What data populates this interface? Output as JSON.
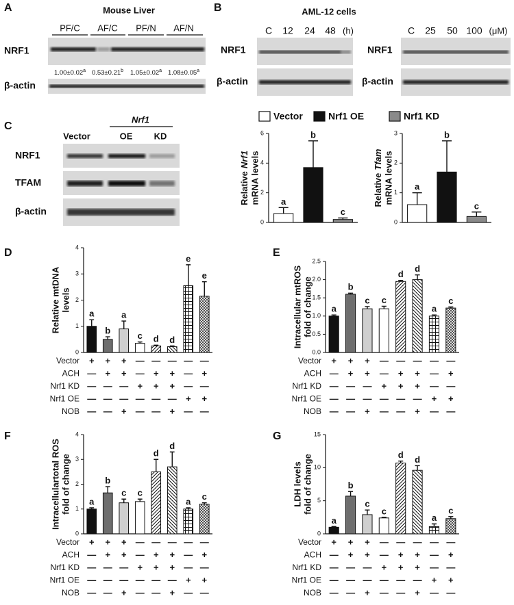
{
  "panel_labels": [
    "A",
    "B",
    "C",
    "D",
    "E",
    "F",
    "G"
  ],
  "blot_a": {
    "title": "Mouse Liver",
    "groups": [
      "PF/C",
      "AF/C",
      "PF/N",
      "AF/N"
    ],
    "rows": [
      "NRF1",
      "β-actin"
    ],
    "quant": [
      "1.00±0.02",
      "0.53±0.21",
      "1.05±0.02",
      "1.08±0.05"
    ],
    "quant_letters": [
      "a",
      "b",
      "a",
      "a"
    ]
  },
  "blot_b": {
    "title": "AML-12 cells",
    "time_cols": [
      "C",
      "12",
      "24",
      "48",
      "(h)"
    ],
    "dose_cols": [
      "C",
      "25",
      "50",
      "100",
      "(μM)"
    ],
    "rows_time": [
      "NRF1",
      "β-actin"
    ],
    "rows_dose": [
      "NRF1",
      "β-actin"
    ]
  },
  "blot_c": {
    "gene": "Nrf1",
    "cols": [
      "Vector",
      "OE",
      "KD"
    ],
    "rows": [
      "NRF1",
      "TFAM",
      "β-actin"
    ]
  },
  "legend": [
    {
      "name": "Vector",
      "color": "#ffffff"
    },
    {
      "name": "Nrf1 OE",
      "color": "#111111"
    },
    {
      "name": "Nrf1 KD",
      "color": "#8a8a8a"
    }
  ],
  "chart_data": [
    {
      "type": "bar",
      "ylabel": [
        "Relative",
        "Nrf1",
        "mRNA levels"
      ],
      "gene_label": true,
      "values": [
        0.6,
        3.7,
        0.2
      ],
      "errors": [
        0.4,
        1.8,
        0.1
      ],
      "letters": [
        "a",
        "b",
        "c"
      ],
      "fills": [
        "#ffffff",
        "#111111",
        "#8a8a8a"
      ],
      "ylim": [
        0,
        6
      ],
      "yticks": [
        0,
        2,
        4,
        6
      ]
    },
    {
      "type": "bar",
      "ylabel": [
        "Relative",
        "Tfam",
        "mRNA levels"
      ],
      "gene_label": true,
      "values": [
        0.6,
        1.7,
        0.2
      ],
      "errors": [
        0.4,
        1.05,
        0.15
      ],
      "letters": [
        "a",
        "b",
        "c"
      ],
      "fills": [
        "#ffffff",
        "#111111",
        "#8a8a8a"
      ],
      "ylim": [
        0,
        3
      ],
      "yticks": [
        0,
        1,
        2,
        3
      ]
    },
    {
      "type": "bar",
      "ylabel": [
        "Relative mtDNA",
        "levels"
      ],
      "values": [
        1.0,
        0.5,
        0.9,
        0.35,
        0.25,
        0.22,
        2.55,
        2.15
      ],
      "errors": [
        0.25,
        0.1,
        0.3,
        0.05,
        0.03,
        0.03,
        0.8,
        0.55
      ],
      "letters": [
        "a",
        "b",
        "a",
        "c",
        "d",
        "d",
        "e",
        "e"
      ],
      "fills": [
        "#111111",
        "#6e6e6e",
        "#cfcfcf",
        "#ffffff",
        "diag",
        "antidiag",
        "grid",
        "check"
      ],
      "ylim": [
        0,
        4
      ],
      "yticks": [
        0,
        1,
        2,
        3,
        4
      ],
      "conditions": {
        "rows": [
          "Vector",
          "ACH",
          "Nrf1 KD",
          "Nrf1 OE",
          "NOB"
        ],
        "signs": [
          [
            "+",
            "+",
            "+",
            "—",
            "—",
            "—",
            "—",
            "—"
          ],
          [
            "—",
            "+",
            "+",
            "—",
            "+",
            "+",
            "—",
            "+"
          ],
          [
            "—",
            "—",
            "—",
            "+",
            "+",
            "+",
            "—",
            "—"
          ],
          [
            "—",
            "—",
            "—",
            "—",
            "—",
            "—",
            "+",
            "+"
          ],
          [
            "—",
            "—",
            "+",
            "—",
            "—",
            "+",
            "—",
            "—"
          ]
        ]
      }
    },
    {
      "type": "bar",
      "ylabel": [
        "Intracellular mtROS",
        "fold of change"
      ],
      "values": [
        1.0,
        1.6,
        1.2,
        1.2,
        1.95,
        2.0,
        1.0,
        1.22
      ],
      "errors": [
        0.03,
        0.03,
        0.06,
        0.07,
        0.03,
        0.13,
        0.03,
        0.03
      ],
      "letters": [
        "a",
        "b",
        "c",
        "c",
        "d",
        "d",
        "a",
        "c"
      ],
      "fills": [
        "#111111",
        "#6e6e6e",
        "#cfcfcf",
        "#ffffff",
        "diag",
        "antidiag",
        "grid",
        "check"
      ],
      "ylim": [
        0,
        2.5
      ],
      "yticks": [
        {
          "value": 0,
          "label": "0.0"
        },
        0.5,
        {
          "value": 1,
          "label": "1.0"
        },
        1.5,
        {
          "value": 2,
          "label": "2.0"
        },
        2.5
      ],
      "conditions": {
        "rows": [
          "Vector",
          "ACH",
          "Nrf1 KD",
          "Nrf1 OE",
          "NOB"
        ],
        "signs": [
          [
            "+",
            "+",
            "+",
            "—",
            "—",
            "—",
            "—",
            "—"
          ],
          [
            "—",
            "+",
            "+",
            "—",
            "+",
            "+",
            "—",
            "+"
          ],
          [
            "—",
            "—",
            "—",
            "+",
            "+",
            "+",
            "—",
            "—"
          ],
          [
            "—",
            "—",
            "—",
            "—",
            "—",
            "—",
            "+",
            "+"
          ],
          [
            "—",
            "—",
            "+",
            "—",
            "—",
            "+",
            "—",
            "—"
          ]
        ]
      }
    },
    {
      "type": "bar",
      "ylabel": [
        "Intracellulartotal ROS",
        "fold of change"
      ],
      "values": [
        1.0,
        1.65,
        1.25,
        1.3,
        2.5,
        2.7,
        1.0,
        1.2
      ],
      "errors": [
        0.05,
        0.25,
        0.15,
        0.1,
        0.5,
        0.6,
        0.05,
        0.05
      ],
      "letters": [
        "a",
        "b",
        "c",
        "c",
        "d",
        "d",
        "a",
        "c"
      ],
      "fills": [
        "#111111",
        "#6e6e6e",
        "#cfcfcf",
        "#ffffff",
        "diag",
        "antidiag",
        "grid",
        "check"
      ],
      "ylim": [
        0,
        4
      ],
      "yticks": [
        0,
        1,
        2,
        3,
        4
      ],
      "conditions": {
        "rows": [
          "Vector",
          "ACH",
          "Nrf1 KD",
          "Nrf1 OE",
          "NOB"
        ],
        "signs": [
          [
            "+",
            "+",
            "+",
            "—",
            "—",
            "—",
            "—",
            "—"
          ],
          [
            "—",
            "+",
            "+",
            "—",
            "+",
            "+",
            "—",
            "+"
          ],
          [
            "—",
            "—",
            "—",
            "+",
            "+",
            "+",
            "—",
            "—"
          ],
          [
            "—",
            "—",
            "—",
            "—",
            "—",
            "—",
            "+",
            "+"
          ],
          [
            "—",
            "—",
            "+",
            "—",
            "—",
            "+",
            "—",
            "—"
          ]
        ]
      }
    },
    {
      "type": "bar",
      "ylabel": [
        "LDH levels",
        "fold of change"
      ],
      "values": [
        1.0,
        5.7,
        2.9,
        2.4,
        10.7,
        9.6,
        1.1,
        2.3
      ],
      "errors": [
        0.1,
        0.7,
        0.7,
        0.1,
        0.3,
        0.7,
        0.4,
        0.3
      ],
      "letters": [
        "a",
        "b",
        "c",
        "c",
        "d",
        "d",
        "a",
        "c"
      ],
      "fills": [
        "#111111",
        "#6e6e6e",
        "#cfcfcf",
        "#ffffff",
        "diag",
        "antidiag",
        "grid",
        "check"
      ],
      "ylim": [
        0,
        15
      ],
      "yticks": [
        0,
        5,
        10,
        15
      ],
      "conditions": {
        "rows": [
          "Vector",
          "ACH",
          "Nrf1 KD",
          "Nrf1 OE",
          "NOB"
        ],
        "signs": [
          [
            "+",
            "+",
            "+",
            "—",
            "—",
            "—",
            "—",
            "—"
          ],
          [
            "—",
            "+",
            "+",
            "—",
            "+",
            "+",
            "—",
            "+"
          ],
          [
            "—",
            "—",
            "—",
            "+",
            "+",
            "+",
            "—",
            "—"
          ],
          [
            "—",
            "—",
            "—",
            "—",
            "—",
            "—",
            "+",
            "+"
          ],
          [
            "—",
            "—",
            "+",
            "—",
            "—",
            "+",
            "—",
            "—"
          ]
        ]
      }
    }
  ]
}
